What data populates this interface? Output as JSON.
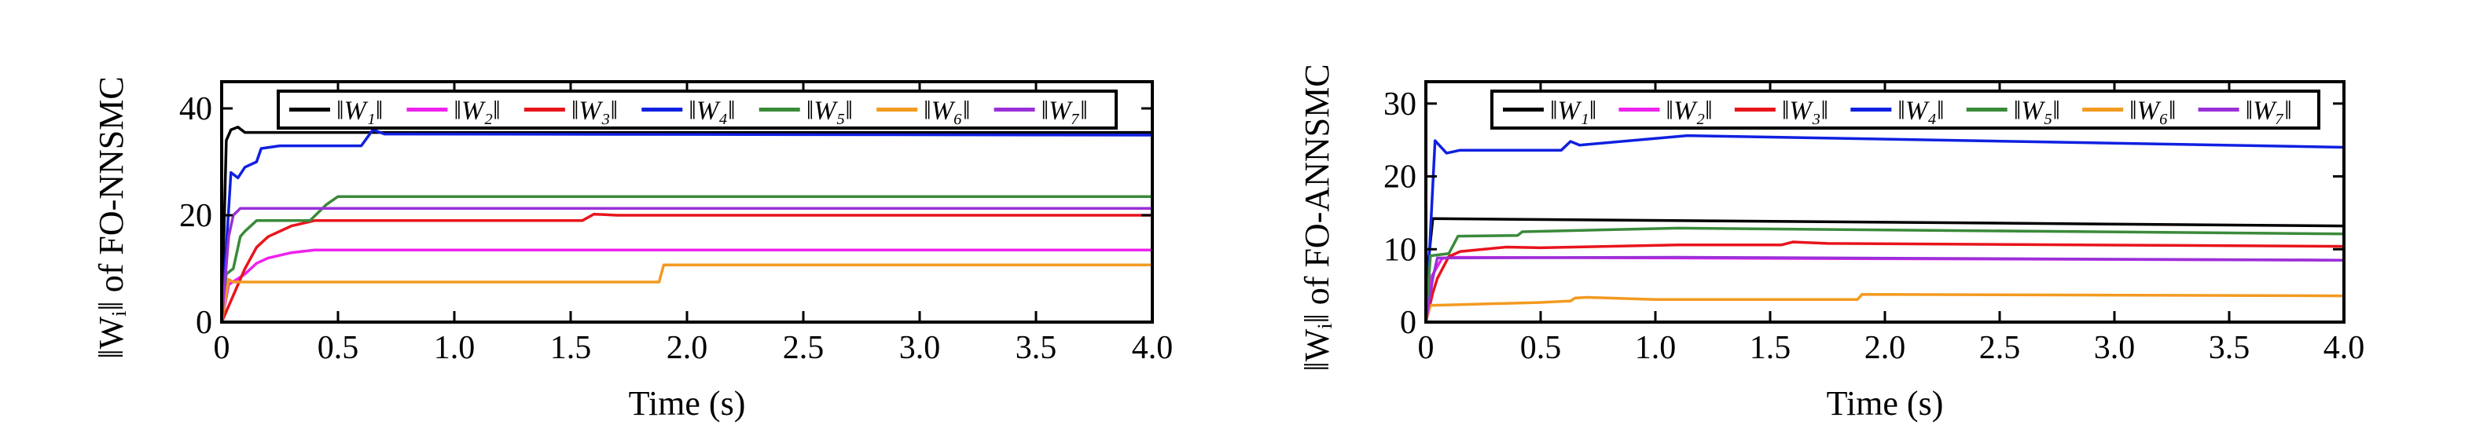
{
  "chart_data": [
    {
      "type": "line",
      "ylabel": "‖Wᵢ‖ of FO-NNSMC",
      "xlabel": "Time (s)",
      "xlim": [
        0,
        4.0
      ],
      "ylim": [
        0,
        45
      ],
      "xticks": [
        "0",
        "0.5",
        "1.0",
        "1.5",
        "2.0",
        "2.5",
        "3.0",
        "3.5",
        "4.0"
      ],
      "yticks": [
        "0",
        "20",
        "40"
      ],
      "grid": false,
      "legend_placement": "top",
      "series": [
        {
          "name": "‖W₁‖",
          "color": "#000000",
          "x": [
            0,
            0.02,
            0.04,
            0.07,
            0.1,
            4.0
          ],
          "y": [
            0,
            34,
            36,
            36.5,
            35.5,
            35.5
          ]
        },
        {
          "name": "‖W₂‖",
          "color": "#ee22ee",
          "x": [
            0,
            0.03,
            0.1,
            0.15,
            0.2,
            0.3,
            0.4,
            4.0
          ],
          "y": [
            0,
            7,
            9,
            11,
            12,
            13,
            13.5,
            13.5
          ]
        },
        {
          "name": "‖W₃‖",
          "color": "#e8141c",
          "x": [
            0,
            0.03,
            0.05,
            0.1,
            0.15,
            0.2,
            0.3,
            0.4,
            1.55,
            1.6,
            1.7,
            4.0
          ],
          "y": [
            0,
            3,
            5,
            10,
            14,
            16,
            18,
            19,
            19,
            20.2,
            20,
            20
          ]
        },
        {
          "name": "‖W₄‖",
          "color": "#1020e0",
          "x": [
            0,
            0.04,
            0.07,
            0.1,
            0.15,
            0.17,
            0.25,
            0.6,
            0.65,
            0.7,
            4.0
          ],
          "y": [
            0,
            28,
            27,
            29,
            30,
            32.5,
            33,
            33,
            36,
            35.2,
            35
          ]
        },
        {
          "name": "‖W₅‖",
          "color": "#3a8a3a",
          "x": [
            0,
            0.02,
            0.05,
            0.08,
            0.1,
            0.15,
            0.38,
            0.45,
            0.5,
            4.0
          ],
          "y": [
            0,
            9,
            10,
            16,
            17,
            19,
            19,
            22,
            23.5,
            23.5
          ]
        },
        {
          "name": "‖W₆‖",
          "color": "#f39a20",
          "x": [
            0,
            0.03,
            0.05,
            1.88,
            1.9,
            4.0
          ],
          "y": [
            0,
            8,
            7.5,
            7.5,
            10.7,
            10.7
          ]
        },
        {
          "name": "‖W₇‖",
          "color": "#9a30d8",
          "x": [
            0,
            0.03,
            0.05,
            0.08,
            4.0
          ],
          "y": [
            0,
            16,
            20,
            21.3,
            21.3
          ]
        }
      ]
    },
    {
      "type": "line",
      "ylabel": "‖Wᵢ‖ of FO-ANNSMC",
      "xlabel": "Time (s)",
      "xlim": [
        0,
        4.0
      ],
      "ylim": [
        0,
        33
      ],
      "xticks": [
        "0",
        "0.5",
        "1.0",
        "1.5",
        "2.0",
        "2.5",
        "3.0",
        "3.5",
        "4.0"
      ],
      "yticks": [
        "0",
        "10",
        "20",
        "30"
      ],
      "grid": false,
      "legend_placement": "top",
      "series": [
        {
          "name": "‖W₁‖",
          "color": "#000000",
          "x": [
            0,
            0.01,
            0.03,
            4.0
          ],
          "y": [
            0,
            8,
            14.2,
            13.2
          ]
        },
        {
          "name": "‖W₂‖",
          "color": "#ee22ee",
          "x": [
            0,
            0.02,
            0.07,
            0.1,
            4.0
          ],
          "y": [
            0,
            6,
            8.7,
            8.9,
            8.5
          ]
        },
        {
          "name": "‖W₃‖",
          "color": "#e8141c",
          "x": [
            0,
            0.03,
            0.05,
            0.1,
            0.15,
            0.35,
            0.5,
            1.1,
            1.55,
            1.6,
            1.75,
            4.0
          ],
          "y": [
            0,
            4,
            6,
            9,
            9.7,
            10.3,
            10.2,
            10.6,
            10.6,
            11.0,
            10.8,
            10.4
          ]
        },
        {
          "name": "‖W₄‖",
          "color": "#1020e0",
          "x": [
            0,
            0.04,
            0.09,
            0.15,
            0.59,
            0.63,
            0.67,
            1.14,
            4.0
          ],
          "y": [
            0,
            24.9,
            23.2,
            23.6,
            23.6,
            24.8,
            24.3,
            25.6,
            24.0
          ]
        },
        {
          "name": "‖W₅‖",
          "color": "#3a8a3a",
          "x": [
            0,
            0.02,
            0.1,
            0.14,
            0.4,
            0.42,
            1.1,
            4.0
          ],
          "y": [
            0,
            9.1,
            9.4,
            11.8,
            11.9,
            12.4,
            12.9,
            12.1
          ]
        },
        {
          "name": "‖W₆‖",
          "color": "#f39a20",
          "x": [
            0,
            0.02,
            0.15,
            0.5,
            0.63,
            0.65,
            0.7,
            1.0,
            1.88,
            1.9,
            4.0
          ],
          "y": [
            0,
            2.3,
            2.4,
            2.7,
            2.9,
            3.3,
            3.4,
            3.1,
            3.1,
            3.8,
            3.6
          ]
        },
        {
          "name": "‖W₇‖",
          "color": "#9a30d8",
          "x": [
            0,
            0.03,
            0.05,
            1.1,
            4.0
          ],
          "y": [
            0,
            6,
            8.8,
            8.9,
            8.5
          ]
        }
      ]
    }
  ]
}
